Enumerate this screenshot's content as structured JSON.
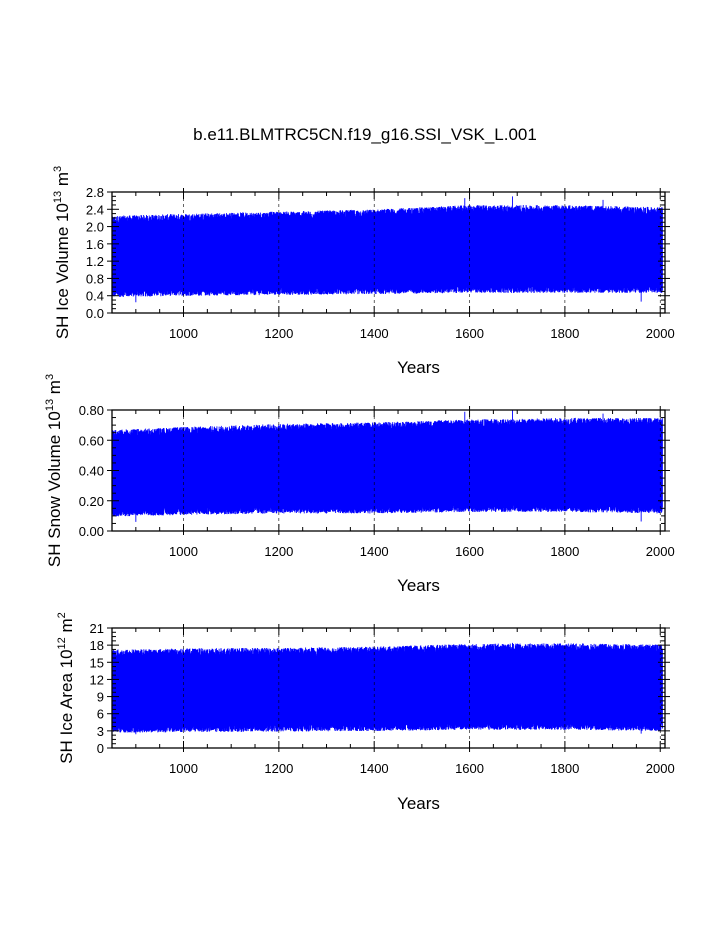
{
  "figure_title": "b.e11.BLMTRC5CN.f19_g16.SSI_VSK_L.001",
  "colors": {
    "series": "#0000ff",
    "frame": "#000000",
    "grid": "#000000"
  },
  "chart_data": [
    {
      "type": "line",
      "title": "b.e11.BLMTRC5CN.f19_g16.SSI_VSK_L.001",
      "xlabel": "Years",
      "ylabel": {
        "base": "SH Ice Volume 10",
        "exp": "13",
        "unit": " m",
        "unit_exp": "3"
      },
      "xlim": [
        850,
        2010
      ],
      "ylim": [
        0,
        2.8
      ],
      "xticks": [
        1000,
        1200,
        1400,
        1600,
        1800,
        2000
      ],
      "xtick_labels": [
        "1000",
        "1200",
        "1400",
        "1600",
        "1800",
        "2000"
      ],
      "yticks": [
        0,
        0.4,
        0.8,
        1.2,
        1.6,
        2.0,
        2.4,
        2.8
      ],
      "ytick_labels": [
        "0.0",
        "0.4",
        "0.8",
        "1.2",
        "1.6",
        "2.0",
        "2.4",
        "2.8"
      ],
      "grid": "vertical dashed at x ticks",
      "seasonal_min": [
        [
          850,
          0.45
        ],
        [
          1000,
          0.48
        ],
        [
          1200,
          0.5
        ],
        [
          1400,
          0.52
        ],
        [
          1600,
          0.55
        ],
        [
          1800,
          0.55
        ],
        [
          2005,
          0.55
        ]
      ],
      "seasonal_max": [
        [
          850,
          2.15
        ],
        [
          1000,
          2.2
        ],
        [
          1200,
          2.25
        ],
        [
          1400,
          2.3
        ],
        [
          1600,
          2.4
        ],
        [
          1800,
          2.4
        ],
        [
          2005,
          2.35
        ]
      ],
      "extreme_max": 2.7,
      "extreme_min": 0.25
    },
    {
      "type": "line",
      "title": "",
      "xlabel": "Years",
      "ylabel": {
        "base": "SH Snow Volume 10",
        "exp": "13",
        "unit": " m",
        "unit_exp": "3"
      },
      "xlim": [
        850,
        2010
      ],
      "ylim": [
        0,
        0.8
      ],
      "xticks": [
        1000,
        1200,
        1400,
        1600,
        1800,
        2000
      ],
      "xtick_labels": [
        "1000",
        "1200",
        "1400",
        "1600",
        "1800",
        "2000"
      ],
      "yticks": [
        0,
        0.2,
        0.4,
        0.6,
        0.8
      ],
      "ytick_labels": [
        "0.00",
        "0.20",
        "0.40",
        "0.60",
        "0.80"
      ],
      "grid": "vertical dashed at x ticks",
      "seasonal_min": [
        [
          850,
          0.12
        ],
        [
          1000,
          0.13
        ],
        [
          1200,
          0.14
        ],
        [
          1400,
          0.14
        ],
        [
          1600,
          0.15
        ],
        [
          1800,
          0.15
        ],
        [
          2005,
          0.14
        ]
      ],
      "seasonal_max": [
        [
          850,
          0.64
        ],
        [
          1000,
          0.66
        ],
        [
          1200,
          0.68
        ],
        [
          1400,
          0.69
        ],
        [
          1600,
          0.71
        ],
        [
          1800,
          0.72
        ],
        [
          2005,
          0.72
        ]
      ],
      "extreme_max": 0.8,
      "extreme_min": 0.06
    },
    {
      "type": "line",
      "title": "",
      "xlabel": "Years",
      "ylabel": {
        "base": "SH Ice Area 10",
        "exp": "12",
        "unit": " m",
        "unit_exp": "2"
      },
      "xlim": [
        850,
        2010
      ],
      "ylim": [
        0,
        21
      ],
      "xticks": [
        1000,
        1200,
        1400,
        1600,
        1800,
        2000
      ],
      "xtick_labels": [
        "1000",
        "1200",
        "1400",
        "1600",
        "1800",
        "2000"
      ],
      "yticks": [
        0,
        3,
        6,
        9,
        12,
        15,
        18,
        21
      ],
      "ytick_labels": [
        "0",
        "3",
        "6",
        "9",
        "12",
        "15",
        "18",
        "21"
      ],
      "grid": "vertical dashed at x ticks",
      "seasonal_min": [
        [
          850,
          3.3
        ],
        [
          1000,
          3.4
        ],
        [
          1200,
          3.5
        ],
        [
          1400,
          3.6
        ],
        [
          1600,
          3.8
        ],
        [
          1800,
          3.8
        ],
        [
          2005,
          3.6
        ]
      ],
      "seasonal_max": [
        [
          850,
          16.5
        ],
        [
          1000,
          16.7
        ],
        [
          1200,
          16.8
        ],
        [
          1400,
          17.0
        ],
        [
          1600,
          17.5
        ],
        [
          1800,
          17.6
        ],
        [
          2005,
          17.4
        ]
      ],
      "extreme_max": 18.4,
      "extreme_min": 2.4
    }
  ]
}
